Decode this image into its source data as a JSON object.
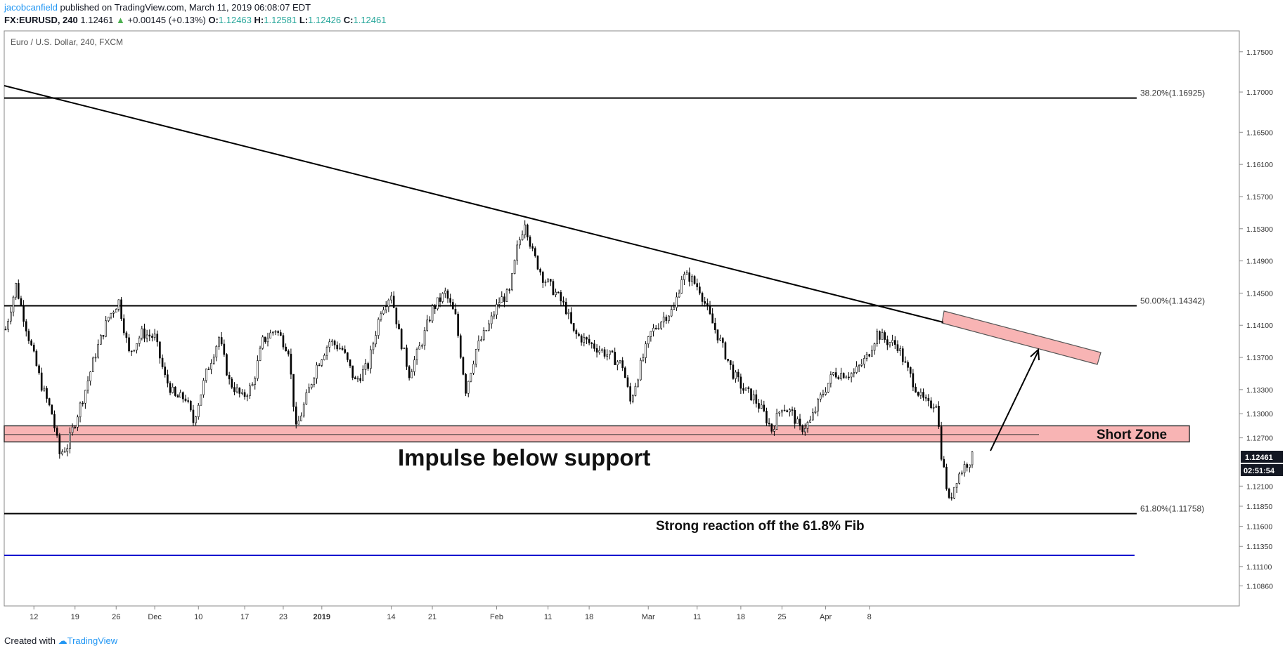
{
  "header": {
    "author": "jacobcanfield",
    "published_text": "published on TradingView.com, March 11, 2019 06:08:07 EDT",
    "symbol": "FX:EURUSD, 240",
    "last": "1.12461",
    "change": "+0.00145 (+0.13%)",
    "o_label": "O:",
    "o_value": "1.12463",
    "h_label": "H:",
    "h_value": "1.12581",
    "l_label": "L:",
    "l_value": "1.12426",
    "c_label": "C:",
    "c_value": "1.12461"
  },
  "footer": {
    "created_with": "Created with",
    "brand": "TradingView"
  },
  "chart_data": {
    "type": "candlestick",
    "title": "Euro / U.S. Dollar, 240, FXCM",
    "y_range": [
      1.1061,
      1.1776
    ],
    "y_ticks": [
      "1.17500",
      "1.17000",
      "1.16500",
      "1.16100",
      "1.15700",
      "1.15300",
      "1.14900",
      "1.14500",
      "1.14100",
      "1.13700",
      "1.13300",
      "1.13000",
      "1.12700",
      "1.12100",
      "1.11850",
      "1.11600",
      "1.11350",
      "1.11100",
      "1.10860"
    ],
    "x_ticks": [
      "12",
      "19",
      "26",
      "Dec",
      "10",
      "17",
      "23",
      "2019",
      "14",
      "21",
      "Feb",
      "11",
      "18",
      "Mar",
      "11",
      "18",
      "25",
      "Apr",
      "8"
    ],
    "price_label": "1.12461",
    "countdown_label": "02:51:54",
    "levels": [
      {
        "label": "38.20%(1.16925)",
        "price": 1.16925,
        "color": "#000000"
      },
      {
        "label": "50.00%(1.14342)",
        "price": 1.14342,
        "color": "#000000"
      },
      {
        "label": "61.80%(1.11758)",
        "price": 1.11758,
        "color": "#000000"
      },
      {
        "label": "",
        "price": 1.1124,
        "color": "#0000cc"
      }
    ],
    "zones": [
      {
        "label": "Short Zone",
        "top": 1.1285,
        "bottom": 1.1265,
        "color": "#f8b4b4"
      }
    ],
    "annotations": [
      {
        "text": "Impulse below support"
      },
      {
        "text": "Strong reaction off the 61.8% Fib"
      }
    ],
    "price_path": [
      [
        0,
        1.1405
      ],
      [
        4,
        1.146
      ],
      [
        9,
        1.1395
      ],
      [
        14,
        1.1335
      ],
      [
        18,
        1.13
      ],
      [
        21,
        1.125
      ],
      [
        24,
        1.126
      ],
      [
        27,
        1.129
      ],
      [
        31,
        1.133
      ],
      [
        35,
        1.1375
      ],
      [
        40,
        1.142
      ],
      [
        44,
        1.144
      ],
      [
        48,
        1.1375
      ],
      [
        53,
        1.14
      ],
      [
        58,
        1.1395
      ],
      [
        62,
        1.1345
      ],
      [
        66,
        1.132
      ],
      [
        70,
        1.132
      ],
      [
        73,
        1.129
      ],
      [
        78,
        1.135
      ],
      [
        83,
        1.1395
      ],
      [
        87,
        1.134
      ],
      [
        92,
        1.132
      ],
      [
        96,
        1.1335
      ],
      [
        100,
        1.139
      ],
      [
        105,
        1.1405
      ],
      [
        110,
        1.138
      ],
      [
        113,
        1.128
      ],
      [
        117,
        1.132
      ],
      [
        121,
        1.136
      ],
      [
        126,
        1.139
      ],
      [
        131,
        1.138
      ],
      [
        136,
        1.134
      ],
      [
        141,
        1.136
      ],
      [
        146,
        1.143
      ],
      [
        150,
        1.145
      ],
      [
        153,
        1.14
      ],
      [
        157,
        1.135
      ],
      [
        162,
        1.139
      ],
      [
        166,
        1.143
      ],
      [
        171,
        1.145
      ],
      [
        175,
        1.142
      ],
      [
        179,
        1.133
      ],
      [
        183,
        1.138
      ],
      [
        188,
        1.141
      ],
      [
        192,
        1.144
      ],
      [
        196,
        1.145
      ],
      [
        199,
        1.1505
      ],
      [
        202,
        1.154
      ],
      [
        205,
        1.15
      ],
      [
        209,
        1.147
      ],
      [
        214,
        1.145
      ],
      [
        218,
        1.143
      ],
      [
        221,
        1.14
      ],
      [
        226,
        1.139
      ],
      [
        231,
        1.138
      ],
      [
        236,
        1.137
      ],
      [
        240,
        1.136
      ],
      [
        243,
        1.1315
      ],
      [
        247,
        1.136
      ],
      [
        251,
        1.14
      ],
      [
        256,
        1.142
      ],
      [
        260,
        1.143
      ],
      [
        263,
        1.147
      ],
      [
        266,
        1.147
      ],
      [
        270,
        1.1455
      ],
      [
        274,
        1.142
      ],
      [
        278,
        1.139
      ],
      [
        283,
        1.135
      ],
      [
        287,
        1.133
      ],
      [
        291,
        1.132
      ],
      [
        295,
        1.13
      ],
      [
        298,
        1.128
      ],
      [
        302,
        1.131
      ],
      [
        306,
        1.13
      ],
      [
        309,
        1.128
      ],
      [
        313,
        1.129
      ],
      [
        317,
        1.132
      ],
      [
        322,
        1.135
      ],
      [
        326,
        1.135
      ],
      [
        330,
        1.135
      ],
      [
        335,
        1.137
      ],
      [
        339,
        1.14
      ],
      [
        343,
        1.139
      ],
      [
        347,
        1.1385
      ],
      [
        350,
        1.136
      ],
      [
        353,
        1.134
      ],
      [
        356,
        1.132
      ],
      [
        359,
        1.131
      ],
      [
        362,
        1.1315
      ],
      [
        364,
        1.125
      ],
      [
        367,
        1.119
      ],
      [
        370,
        1.122
      ],
      [
        373,
        1.1235
      ],
      [
        376,
        1.1246
      ]
    ],
    "trendline": [
      [
        0,
        1.1698
      ],
      [
        376,
        1.1412
      ]
    ]
  }
}
